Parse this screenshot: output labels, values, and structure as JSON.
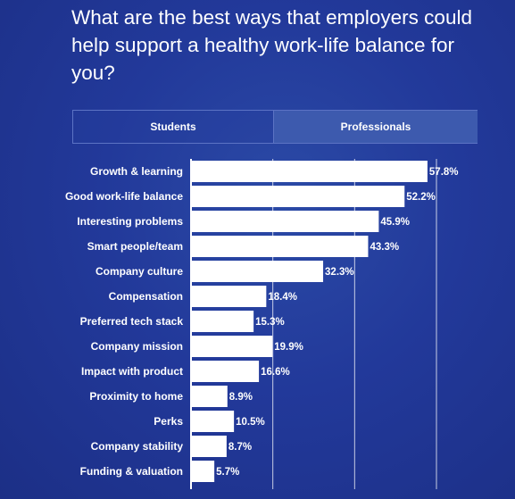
{
  "question": "What are the best ways that employers could help support a healthy work-life balance for you?",
  "tabs": [
    {
      "label": "Students",
      "active": true
    },
    {
      "label": "Professionals",
      "active": false
    }
  ],
  "colors": {
    "bar": "#ffffff",
    "text": "#ffffff",
    "grid": "#ffffff",
    "tab_inactive": "#3d5aae"
  },
  "chart_data": {
    "type": "bar",
    "orientation": "horizontal",
    "categories": [
      "Growth & learning",
      "Good work-life balance",
      "Interesting problems",
      "Smart people/team",
      "Company culture",
      "Compensation",
      "Preferred tech stack",
      "Company mission",
      "Impact with product",
      "Proximity to home",
      "Perks",
      "Company stability",
      "Funding & valuation"
    ],
    "values": [
      57.8,
      52.2,
      45.9,
      43.3,
      32.3,
      18.4,
      15.3,
      19.9,
      16.6,
      8.9,
      10.5,
      8.7,
      5.7
    ],
    "value_labels": [
      "57.8%",
      "52.2%",
      "45.9%",
      "43.3%",
      "32.3%",
      "18.4%",
      "15.3%",
      "19.9%",
      "16.6%",
      "8.9%",
      "10.5%",
      "8.7%",
      "5.7%"
    ],
    "xlim": [
      0,
      60
    ],
    "gridlines": [
      0,
      20,
      40,
      60
    ],
    "grid": true
  }
}
